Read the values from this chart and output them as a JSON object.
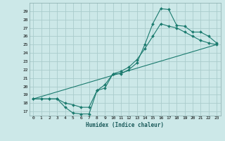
{
  "xlabel": "Humidex (Indice chaleur)",
  "background_color": "#cce8e8",
  "grid_color": "#aacccc",
  "line_color": "#1a7a6e",
  "xlim": [
    -0.5,
    23.5
  ],
  "ylim": [
    16.5,
    30.0
  ],
  "xtick_labels": [
    "0",
    "1",
    "2",
    "3",
    "4",
    "5",
    "6",
    "7",
    "8",
    "9",
    "10",
    "11",
    "12",
    "13",
    "14",
    "15",
    "16",
    "17",
    "18",
    "19",
    "20",
    "21",
    "22",
    "23"
  ],
  "ytick_labels": [
    "17",
    "18",
    "19",
    "20",
    "21",
    "22",
    "23",
    "24",
    "25",
    "26",
    "27",
    "28",
    "29"
  ],
  "ytick_vals": [
    17,
    18,
    19,
    20,
    21,
    22,
    23,
    24,
    25,
    26,
    27,
    28,
    29
  ],
  "curve1_x": [
    0,
    1,
    2,
    3,
    4,
    5,
    6,
    7,
    8,
    9,
    10,
    11,
    12,
    13,
    14,
    15,
    16,
    17,
    18,
    19,
    20,
    21,
    22,
    23
  ],
  "curve1_y": [
    18.5,
    18.5,
    18.5,
    18.5,
    17.5,
    16.8,
    16.7,
    16.7,
    19.5,
    19.8,
    21.5,
    21.5,
    22.0,
    22.8,
    25.0,
    27.5,
    29.3,
    29.2,
    27.3,
    27.2,
    26.5,
    26.5,
    26.0,
    25.2
  ],
  "curve2_x": [
    0,
    1,
    2,
    3,
    4,
    5,
    6,
    7,
    8,
    9,
    10,
    11,
    12,
    13,
    14,
    15,
    16,
    17,
    18,
    19,
    20,
    21,
    22,
    23
  ],
  "curve2_y": [
    18.5,
    18.5,
    18.5,
    18.5,
    18.0,
    17.8,
    17.5,
    17.5,
    19.5,
    20.2,
    21.5,
    21.8,
    22.3,
    23.2,
    24.5,
    26.0,
    27.5,
    27.2,
    27.0,
    26.5,
    26.0,
    25.5,
    25.2,
    25.0
  ],
  "curve3_x": [
    0,
    23
  ],
  "curve3_y": [
    18.5,
    25.0
  ]
}
